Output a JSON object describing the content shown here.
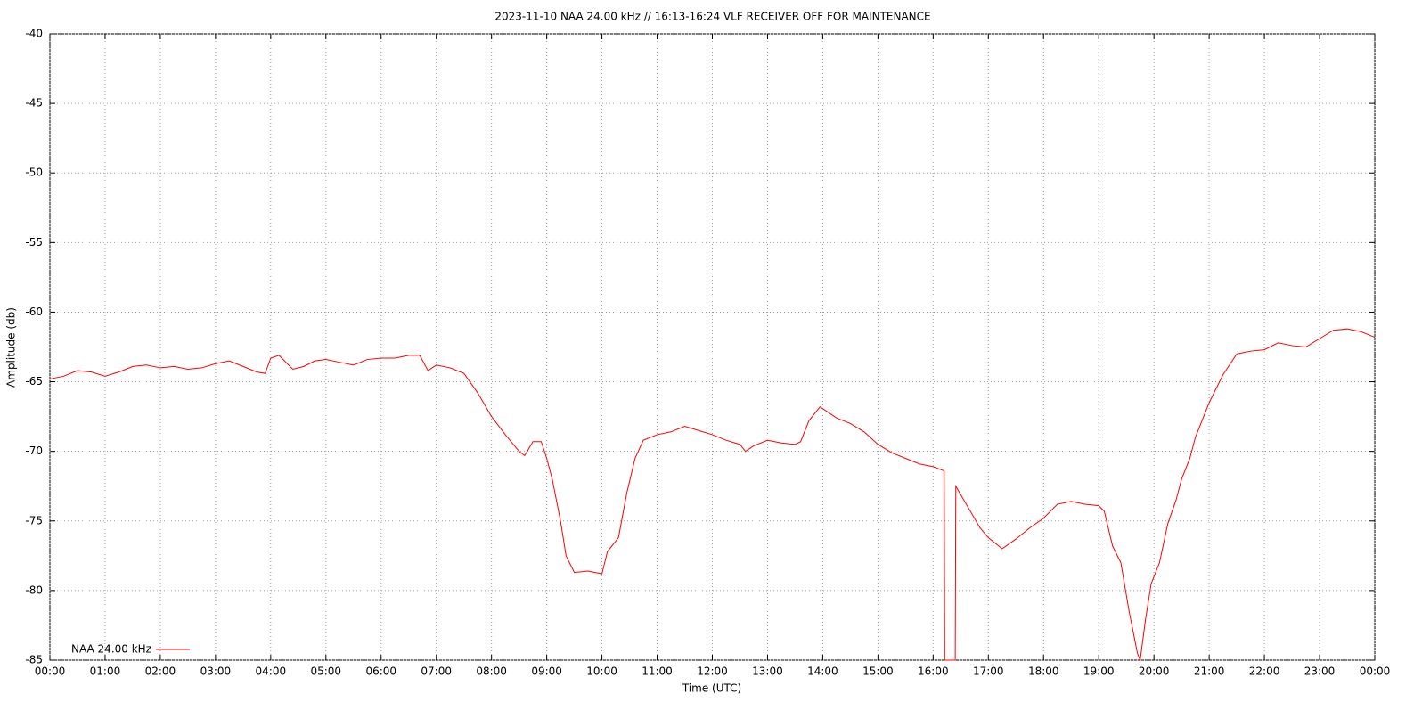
{
  "chart_data": {
    "type": "line",
    "title": "2023-11-10 NAA 24.00 kHz // 16:13-16:24 VLF RECEIVER OFF FOR MAINTENANCE",
    "x_label": "Time (UTC)",
    "y_label": "Amplitude (db)",
    "xlim": [
      0,
      24
    ],
    "ylim": [
      -85,
      -40
    ],
    "xticks": [
      {
        "value": 0,
        "label": "00:00"
      },
      {
        "value": 1,
        "label": "01:00"
      },
      {
        "value": 2,
        "label": "02:00"
      },
      {
        "value": 3,
        "label": "03:00"
      },
      {
        "value": 4,
        "label": "04:00"
      },
      {
        "value": 5,
        "label": "05:00"
      },
      {
        "value": 6,
        "label": "06:00"
      },
      {
        "value": 7,
        "label": "07:00"
      },
      {
        "value": 8,
        "label": "08:00"
      },
      {
        "value": 9,
        "label": "09:00"
      },
      {
        "value": 10,
        "label": "10:00"
      },
      {
        "value": 11,
        "label": "11:00"
      },
      {
        "value": 12,
        "label": "12:00"
      },
      {
        "value": 13,
        "label": "13:00"
      },
      {
        "value": 14,
        "label": "14:00"
      },
      {
        "value": 15,
        "label": "15:00"
      },
      {
        "value": 16,
        "label": "16:00"
      },
      {
        "value": 17,
        "label": "17:00"
      },
      {
        "value": 18,
        "label": "18:00"
      },
      {
        "value": 19,
        "label": "19:00"
      },
      {
        "value": 20,
        "label": "20:00"
      },
      {
        "value": 21,
        "label": "21:00"
      },
      {
        "value": 22,
        "label": "22:00"
      },
      {
        "value": 23,
        "label": "23:00"
      },
      {
        "value": 24,
        "label": "00:00"
      }
    ],
    "yticks": [
      -85,
      -80,
      -75,
      -70,
      -65,
      -60,
      -55,
      -50,
      -45,
      -40
    ],
    "grid": true,
    "legend": "bottom-left",
    "x": [
      0,
      0.25,
      0.5,
      0.75,
      1,
      1.25,
      1.5,
      1.75,
      2,
      2.25,
      2.5,
      2.75,
      3,
      3.25,
      3.5,
      3.75,
      3.9,
      4,
      4.15,
      4.4,
      4.6,
      4.8,
      5,
      5.25,
      5.5,
      5.75,
      6,
      6.25,
      6.5,
      6.7,
      6.85,
      7,
      7.25,
      7.5,
      7.75,
      8,
      8.25,
      8.5,
      8.6,
      8.75,
      8.9,
      9,
      9.1,
      9.25,
      9.35,
      9.5,
      9.75,
      10,
      10.1,
      10.3,
      10.45,
      10.6,
      10.75,
      11,
      11.25,
      11.5,
      11.75,
      12,
      12.25,
      12.5,
      12.6,
      12.75,
      13,
      13.25,
      13.5,
      13.6,
      13.75,
      13.95,
      14.25,
      14.5,
      14.75,
      15,
      15.25,
      15.5,
      15.75,
      16,
      16.2,
      16.21,
      16.4,
      16.41,
      16.6,
      16.85,
      17,
      17.25,
      17.5,
      17.75,
      18,
      18.25,
      18.5,
      18.75,
      19,
      19.1,
      19.25,
      19.4,
      19.55,
      19.7,
      19.75,
      19.85,
      19.95,
      20.1,
      20.25,
      20.4,
      20.5,
      20.65,
      20.75,
      21,
      21.25,
      21.5,
      21.75,
      22,
      22.25,
      22.5,
      22.75,
      23,
      23.25,
      23.5,
      23.75,
      24
    ],
    "series": [
      {
        "name": "NAA 24.00 kHz",
        "color": "#ff0000",
        "values": [
          -64.8,
          -64.6,
          -64.2,
          -64.3,
          -64.6,
          -64.3,
          -63.9,
          -63.8,
          -64,
          -63.9,
          -64.1,
          -64,
          -63.7,
          -63.5,
          -63.9,
          -64.3,
          -64.4,
          -63.3,
          -63.1,
          -64.1,
          -63.9,
          -63.5,
          -63.4,
          -63.6,
          -63.8,
          -63.4,
          -63.3,
          -63.3,
          -63.1,
          -63.1,
          -64.2,
          -63.8,
          -64,
          -64.4,
          -65.8,
          -67.5,
          -68.8,
          -70,
          -70.3,
          -69.3,
          -69.3,
          -70.5,
          -72,
          -75,
          -77.5,
          -78.7,
          -78.6,
          -78.8,
          -77.2,
          -76.2,
          -73,
          -70.5,
          -69.2,
          -68.8,
          -68.6,
          -68.2,
          -68.5,
          -68.8,
          -69.2,
          -69.5,
          -70,
          -69.6,
          -69.2,
          -69.4,
          -69.5,
          -69.3,
          -67.8,
          -66.8,
          -67.6,
          -68,
          -68.6,
          -69.5,
          -70.1,
          -70.5,
          -70.9,
          -71.1,
          -71.4,
          -85,
          -85,
          -72.5,
          -73.8,
          -75.5,
          -76.2,
          -77,
          -76.3,
          -75.5,
          -74.8,
          -73.8,
          -73.6,
          -73.8,
          -73.9,
          -74.3,
          -76.8,
          -78,
          -81.5,
          -84.5,
          -85,
          -82,
          -79.5,
          -78,
          -75.2,
          -73.5,
          -72,
          -70.5,
          -69,
          -66.5,
          -64.5,
          -63,
          -62.8,
          -62.7,
          -62.2,
          -62.4,
          -62.5,
          -61.9,
          -61.3,
          -61.2,
          -61.4,
          -61.8
        ]
      }
    ]
  }
}
